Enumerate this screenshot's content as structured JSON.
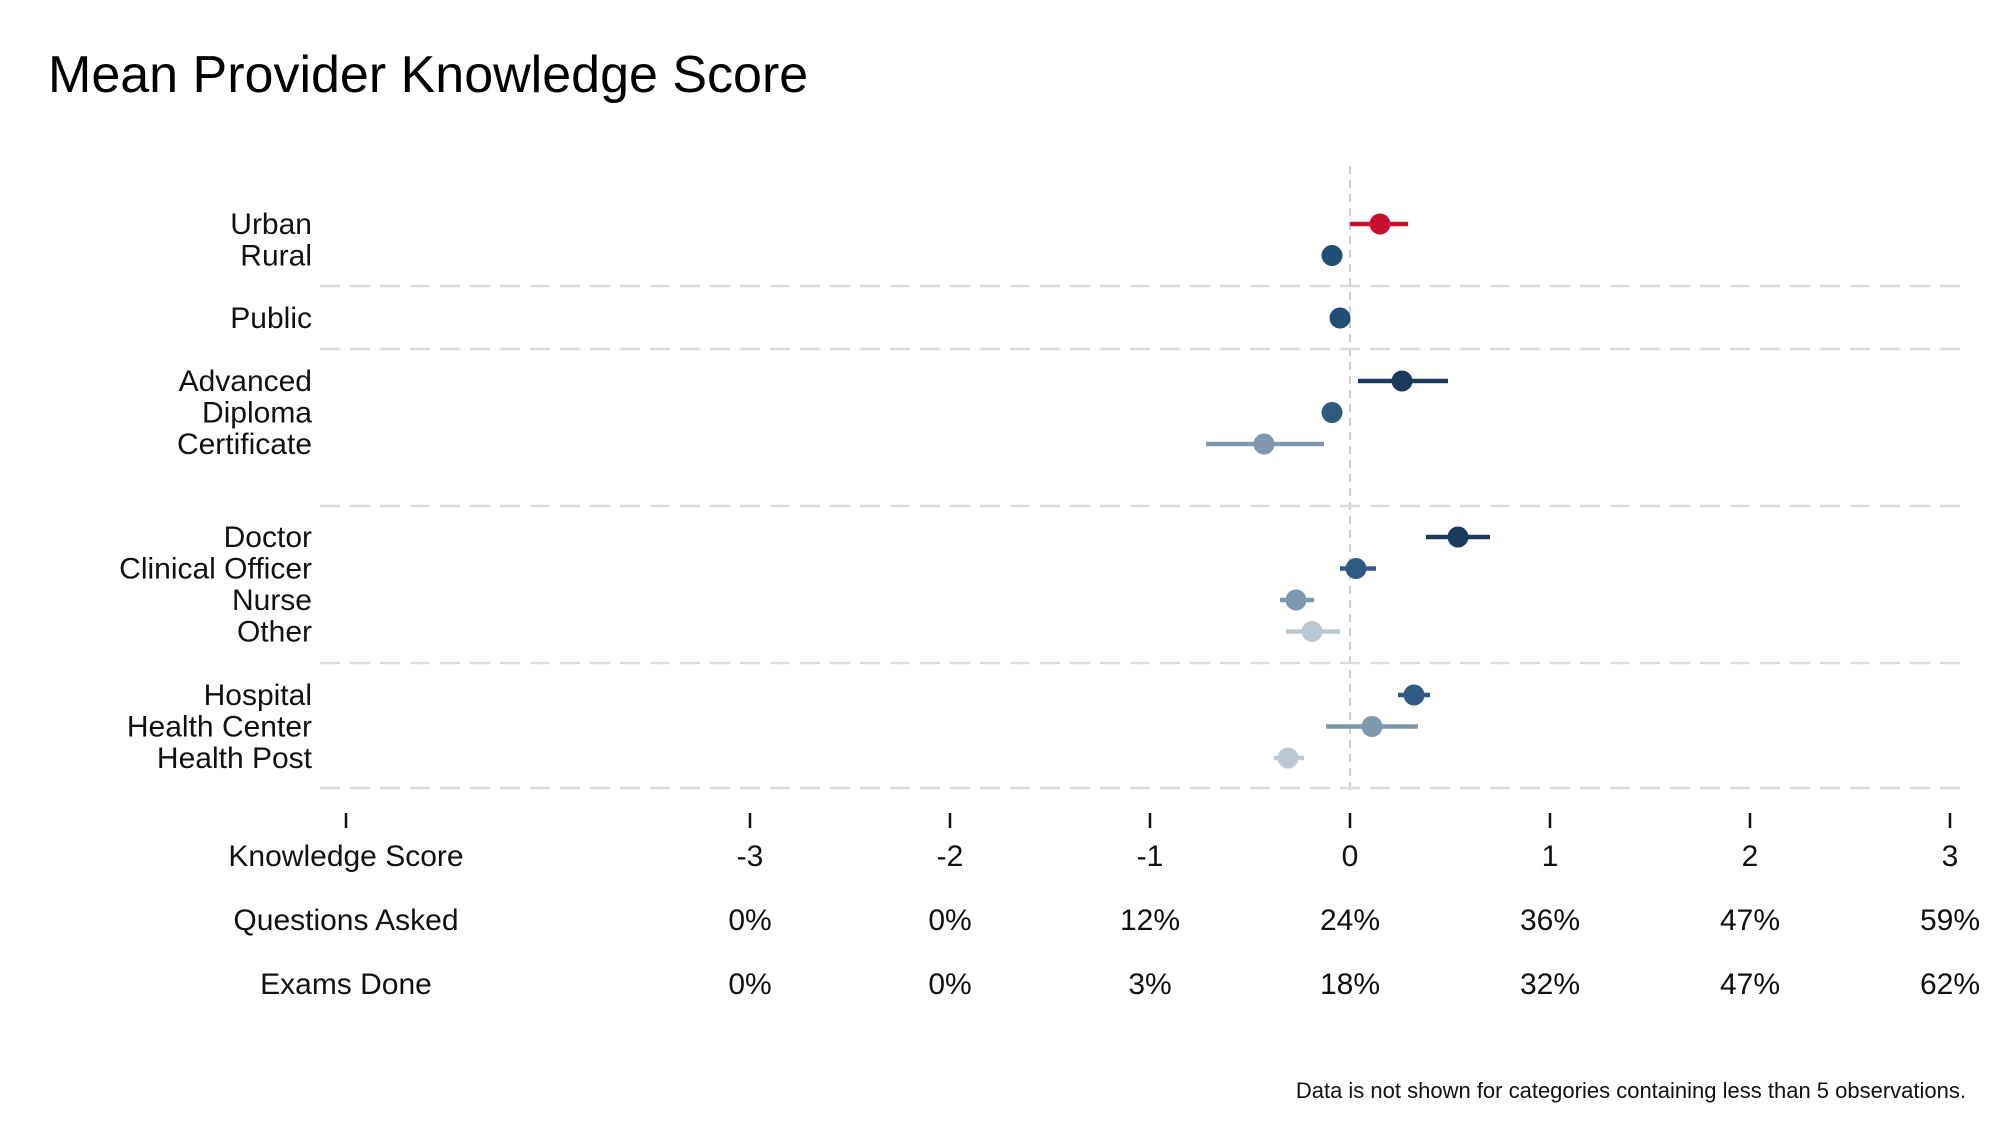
{
  "title": "Mean Provider Knowledge Score",
  "note": "Data is not shown for categories containing less than 5 observations.",
  "chart_data": {
    "type": "scatter",
    "title": "Mean Provider Knowledge Score",
    "xlim": [
      -5.5,
      3
    ],
    "reference_line_x": 0,
    "groups": [
      {
        "items": [
          {
            "label": "Urban",
            "mean": 0.15,
            "low": 0.0,
            "high": 0.29,
            "color": "#c8102e"
          },
          {
            "label": "Rural",
            "mean": -0.09,
            "low": -0.14,
            "high": -0.04,
            "color": "#1f4e79"
          }
        ]
      },
      {
        "items": [
          {
            "label": "Public",
            "mean": -0.05,
            "low": -0.09,
            "high": -0.01,
            "color": "#1f4e79"
          }
        ]
      },
      {
        "items": [
          {
            "label": "Advanced",
            "mean": 0.26,
            "low": 0.04,
            "high": 0.49,
            "color": "#1b3a5c"
          },
          {
            "label": "Diploma",
            "mean": -0.09,
            "low": -0.14,
            "high": -0.04,
            "color": "#2f5a82"
          },
          {
            "label": "Certificate",
            "mean": -0.43,
            "low": -0.72,
            "high": -0.13,
            "color": "#7f97ad"
          }
        ]
      },
      {
        "items": [
          {
            "label": "Doctor",
            "mean": 0.54,
            "low": 0.38,
            "high": 0.7,
            "color": "#1b3a5c"
          },
          {
            "label": "Clinical Officer",
            "mean": 0.03,
            "low": -0.05,
            "high": 0.13,
            "color": "#2f5a82"
          },
          {
            "label": "Nurse",
            "mean": -0.27,
            "low": -0.35,
            "high": -0.18,
            "color": "#7f97ad"
          },
          {
            "label": "Other",
            "mean": -0.19,
            "low": -0.32,
            "high": -0.05,
            "color": "#bac8d4"
          }
        ]
      },
      {
        "items": [
          {
            "label": "Hospital",
            "mean": 0.32,
            "low": 0.24,
            "high": 0.4,
            "color": "#2f5a82"
          },
          {
            "label": "Health Center",
            "mean": 0.11,
            "low": -0.12,
            "high": 0.34,
            "color": "#7f97ad"
          },
          {
            "label": "Health Post",
            "mean": -0.31,
            "low": -0.38,
            "high": -0.23,
            "color": "#bac8d4"
          }
        ]
      }
    ],
    "axis_table": {
      "ticks": [
        -3,
        -2,
        -1,
        0,
        1,
        2,
        3
      ],
      "rows": [
        {
          "label": "Knowledge Score",
          "values": [
            "-3",
            "-2",
            "-1",
            "0",
            "1",
            "2",
            "3"
          ]
        },
        {
          "label": "Questions Asked",
          "values": [
            "0%",
            "0%",
            "12%",
            "24%",
            "36%",
            "47%",
            "59%"
          ]
        },
        {
          "label": "Exams Done",
          "values": [
            "0%",
            "0%",
            "3%",
            "18%",
            "32%",
            "47%",
            "62%"
          ]
        }
      ]
    }
  }
}
